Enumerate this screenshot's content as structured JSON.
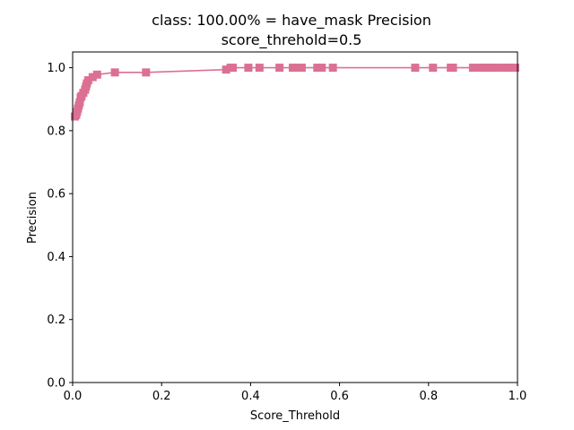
{
  "chart_data": {
    "type": "line",
    "title_line1": "class: 100.00% = have_mask Precision",
    "title_line2": "score_threhold=0.5",
    "xlabel": "Score_Threhold",
    "ylabel": "Precision",
    "xlim": [
      0.0,
      1.0
    ],
    "ylim": [
      0.0,
      1.05
    ],
    "x_ticks": [
      "0.0",
      "0.2",
      "0.4",
      "0.6",
      "0.8",
      "1.0"
    ],
    "y_ticks": [
      "0.0",
      "0.2",
      "0.4",
      "0.6",
      "0.8",
      "1.0"
    ],
    "grid": false,
    "series": [
      {
        "color": "#db7093",
        "marker": "square",
        "x": [
          0.005,
          0.008,
          0.01,
          0.012,
          0.014,
          0.016,
          0.018,
          0.02,
          0.024,
          0.028,
          0.03,
          0.032,
          0.035,
          0.045,
          0.055,
          0.095,
          0.165,
          0.345,
          0.355,
          0.36,
          0.395,
          0.42,
          0.465,
          0.495,
          0.505,
          0.515,
          0.55,
          0.56,
          0.585,
          0.77,
          0.81,
          0.85,
          0.855,
          0.9,
          0.915,
          0.925,
          0.935,
          0.945,
          0.955,
          0.965,
          0.975,
          0.985,
          0.995
        ],
        "y": [
          0.845,
          0.85,
          0.86,
          0.87,
          0.88,
          0.89,
          0.905,
          0.91,
          0.92,
          0.93,
          0.94,
          0.95,
          0.96,
          0.97,
          0.978,
          0.985,
          0.985,
          0.994,
          1.0,
          1.0,
          1.0,
          1.0,
          1.0,
          1.0,
          1.0,
          1.0,
          1.0,
          1.0,
          1.0,
          1.0,
          1.0,
          1.0,
          1.0,
          1.0,
          1.0,
          1.0,
          1.0,
          1.0,
          1.0,
          1.0,
          1.0,
          1.0,
          1.0
        ]
      }
    ]
  }
}
